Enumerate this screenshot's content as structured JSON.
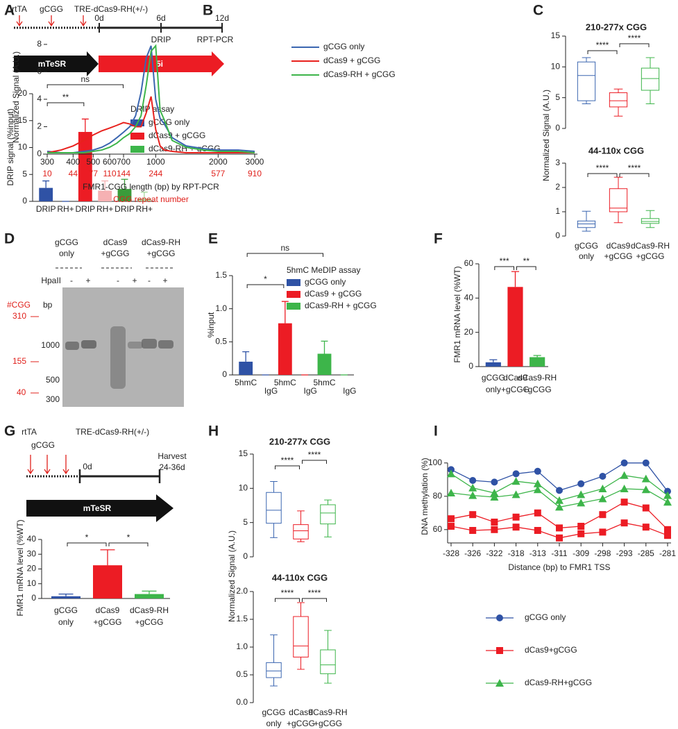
{
  "panel_labels": [
    "A",
    "B",
    "C",
    "D",
    "E",
    "F",
    "G",
    "H",
    "I"
  ],
  "schematic_a": {
    "inducers": [
      "rtTA",
      "gCGG",
      "TRE-dCas9-RH(+/-)"
    ],
    "days": [
      "0d",
      "6d",
      "12d"
    ],
    "assays": [
      "DRIP",
      "RPT-PCR"
    ],
    "media": [
      "mTeSR",
      "5i"
    ]
  },
  "gel": {
    "samples": [
      [
        "gCGG",
        "only"
      ],
      [
        "dCas9",
        "+gCGG"
      ],
      [
        "dCas9-RH",
        "+gCGG"
      ]
    ],
    "enzyme": "HpaII",
    "lanes": [
      "-",
      "+",
      "-",
      "+",
      "-",
      "+"
    ],
    "cgg_header": "#CGG",
    "bp_header": "bp",
    "cgg_marks": [
      "310",
      "155",
      "40"
    ],
    "bp_marks": [
      "1000",
      "500",
      "300"
    ]
  },
  "schematic_g": {
    "inducers": [
      "rtTA",
      "gCGG",
      "TRE-dCas9-RH(+/-)"
    ],
    "day": "0d",
    "harvest": [
      "Harvest",
      "24-36d"
    ],
    "medium": "mTeSR"
  },
  "chart_data": [
    {
      "type": "bar",
      "y_label": "DRIP signal (%input)",
      "categories": [
        "DRIP",
        "RH+",
        "DRIP",
        "RH+",
        "DRIP",
        "RH+"
      ],
      "values": [
        2.5,
        0,
        12.9,
        2.0,
        2.3,
        0.5
      ],
      "errors": [
        1.3,
        0,
        2.4,
        1.8,
        1.8,
        1.2
      ],
      "colors": [
        "#2f52a5",
        "#2f52a5",
        "#ec1c24",
        "#f6b1b3",
        "#3a9b3a",
        "#a8d8a0"
      ],
      "ylim": [
        0,
        20
      ],
      "yticks": [
        0,
        5,
        10,
        15,
        20
      ],
      "significance": [
        {
          "from": 0,
          "to": 2,
          "label": "**"
        },
        {
          "from": 0,
          "to": 4,
          "label": "ns"
        }
      ],
      "legend": {
        "title": "DRIP assay",
        "entries": [
          {
            "name": "gCGG only",
            "color": "#2f52a5"
          },
          {
            "name": "dCas9 + gCGG",
            "color": "#ec1c24"
          },
          {
            "name": "dCas9-RH + gCGG",
            "color": "#3db54a"
          }
        ]
      }
    },
    {
      "type": "line",
      "y_label": "Normalized Signal (A.U.)",
      "x_label": "FMR1-CGG length (bp) by RPT-PCR",
      "x2_label": "CGG repeat number",
      "xscale": "log",
      "x": [
        300,
        350,
        400,
        450,
        500,
        550,
        600,
        650,
        700,
        750,
        800,
        850,
        900,
        950,
        1000,
        1050,
        1100,
        1200,
        1400,
        1700,
        2000,
        2500,
        3000
      ],
      "series": [
        {
          "name": "gCGG only",
          "color": "#3b66b0",
          "values": [
            0.2,
            0.1,
            0.1,
            0.2,
            0.3,
            0.5,
            0.8,
            1.2,
            1.6,
            2.0,
            2.8,
            4.5,
            7.0,
            7.9,
            4.0,
            2.6,
            2.2,
            1.2,
            0.6,
            0.4,
            0.3,
            0.3,
            0.2
          ]
        },
        {
          "name": "dCas9 + gCGG",
          "color": "#e8211d",
          "values": [
            0.1,
            0.3,
            0.6,
            1.0,
            1.4,
            1.7,
            1.9,
            2.1,
            2.3,
            2.2,
            2.0,
            2.0,
            3.0,
            4.2,
            1.8,
            0.6,
            0.3,
            0.2,
            0.1,
            0.1,
            0.1,
            0.1,
            0.1
          ]
        },
        {
          "name": "dCas9-RH + gCGG",
          "color": "#3db54a",
          "values": [
            0.1,
            0.1,
            0.1,
            0.1,
            0.2,
            0.3,
            0.5,
            0.8,
            1.2,
            1.5,
            2.0,
            2.8,
            5.0,
            7.5,
            7.9,
            3.2,
            2.5,
            1.0,
            0.5,
            0.3,
            0.2,
            0.2,
            0.1
          ]
        }
      ],
      "xlim": [
        300,
        3000
      ],
      "xticks": [
        300,
        400,
        500,
        600,
        700,
        1000,
        2000,
        3000
      ],
      "x2ticks": [
        {
          "value": 300,
          "label": "10"
        },
        {
          "value": 400,
          "label": "44"
        },
        {
          "value": 500,
          "label": "77"
        },
        {
          "value": 600,
          "label": "110"
        },
        {
          "value": 700,
          "label": "144"
        },
        {
          "value": 1000,
          "label": "244"
        },
        {
          "value": 2000,
          "label": "577"
        },
        {
          "value": 3000,
          "label": "910"
        }
      ],
      "ylim": [
        0,
        8.3
      ],
      "yticks": [
        0,
        2,
        4,
        6,
        8
      ]
    },
    {
      "type": "box",
      "title": "210-277x CGG",
      "boxes": [
        {
          "min": 4,
          "q1": 4.5,
          "median": 8.6,
          "q3": 10.8,
          "max": 11.5
        },
        {
          "min": 2,
          "q1": 3.5,
          "median": 4.5,
          "q3": 5.8,
          "max": 6.4
        },
        {
          "min": 4,
          "q1": 6.2,
          "median": 8.1,
          "q3": 9.8,
          "max": 11.5
        }
      ],
      "colors": [
        "#3b66b0",
        "#ec1c24",
        "#3db54a"
      ],
      "ylim": [
        0,
        15
      ],
      "yticks": [
        0,
        5,
        10,
        15
      ],
      "significance": [
        {
          "from": 0,
          "to": 1,
          "label": "****"
        },
        {
          "from": 1,
          "to": 2,
          "label": "****"
        }
      ]
    },
    {
      "type": "box",
      "title": "44-110x CGG",
      "y_label": "Normalized Signal (A.U.)",
      "categories": [
        [
          "gCGG",
          "only"
        ],
        [
          "dCas9",
          "+gCGG"
        ],
        [
          "dCas9-RH",
          "+gCGG"
        ]
      ],
      "boxes": [
        {
          "min": 0.2,
          "q1": 0.35,
          "median": 0.5,
          "q3": 0.62,
          "max": 1.02
        },
        {
          "min": 0.55,
          "q1": 1.0,
          "median": 1.15,
          "q3": 1.95,
          "max": 2.42
        },
        {
          "min": 0.35,
          "q1": 0.52,
          "median": 0.6,
          "q3": 0.72,
          "max": 1.05
        }
      ],
      "colors": [
        "#3b66b0",
        "#ec1c24",
        "#3db54a"
      ],
      "ylim": [
        0,
        3
      ],
      "yticks": [
        0,
        1,
        2,
        3
      ],
      "significance": [
        {
          "from": 0,
          "to": 1,
          "label": "****"
        },
        {
          "from": 1,
          "to": 2,
          "label": "****"
        }
      ]
    },
    {
      "type": "bar",
      "y_label": "%input",
      "categories": [
        "5hmC",
        "IgG",
        "5hmC",
        "IgG",
        "5hmC",
        "IgG"
      ],
      "values": [
        0.2,
        0,
        0.78,
        0,
        0.32,
        0
      ],
      "errors": [
        0.15,
        0,
        0.33,
        0,
        0.19,
        0
      ],
      "colors": [
        "#2f52a5",
        "#2f52a5",
        "#ec1c24",
        "#ec1c24",
        "#3db54a",
        "#3db54a"
      ],
      "ylim": [
        0,
        1.5
      ],
      "yticks": [
        0,
        0.5,
        {
          "value": 1,
          "label": "1.0"
        },
        1.5
      ],
      "significance": [
        {
          "from": 0,
          "to": 2,
          "label": "*"
        },
        {
          "from": 0,
          "to": 4,
          "label": "ns"
        }
      ],
      "legend": {
        "title": "5hmC MeDIP assay",
        "entries": [
          {
            "name": "gCGG only",
            "color": "#2f52a5"
          },
          {
            "name": "dCas9 + gCGG",
            "color": "#ec1c24"
          },
          {
            "name": "dCas9-RH + gCGG",
            "color": "#3db54a"
          }
        ]
      }
    },
    {
      "type": "bar",
      "y_label": "FMR1 mRNA level (%WT)",
      "categories": [
        [
          "gCGG",
          "only"
        ],
        [
          "dCas9",
          "+gCGG"
        ],
        [
          "dCas9-RH",
          "+gCGG"
        ]
      ],
      "values": [
        2.5,
        46.5,
        5.5
      ],
      "errors": [
        1.5,
        9,
        1
      ],
      "colors": [
        "#2f52a5",
        "#ec1c24",
        "#3db54a"
      ],
      "ylim": [
        0,
        60
      ],
      "yticks": [
        0,
        20,
        40,
        60
      ],
      "significance": [
        {
          "from": 0,
          "to": 1,
          "label": "***"
        },
        {
          "from": 1,
          "to": 2,
          "label": "**"
        }
      ]
    },
    {
      "type": "bar",
      "y_label": "FMR1 mRNA level (%WT)",
      "categories": [
        [
          "gCGG",
          "only"
        ],
        [
          "dCas9",
          "+gCGG"
        ],
        [
          "dCas9-RH",
          "+gCGG"
        ]
      ],
      "values": [
        1.5,
        22.5,
        3
      ],
      "errors": [
        1.5,
        10.5,
        2
      ],
      "colors": [
        "#2f52a5",
        "#ec1c24",
        "#3db54a"
      ],
      "ylim": [
        0,
        40
      ],
      "yticks": [
        0,
        10,
        20,
        30,
        40
      ],
      "significance": [
        {
          "from": 0,
          "to": 1,
          "label": "*"
        },
        {
          "from": 1,
          "to": 2,
          "label": "*"
        }
      ]
    },
    {
      "type": "box",
      "title": "210-277x CGG",
      "boxes": [
        {
          "min": 2.8,
          "q1": 4.9,
          "median": 6.8,
          "q3": 9.4,
          "max": 11
        },
        {
          "min": 2.2,
          "q1": 2.6,
          "median": 3.8,
          "q3": 4.7,
          "max": 6.7
        },
        {
          "min": 2.9,
          "q1": 4.8,
          "median": 6.4,
          "q3": 7.6,
          "max": 8.3
        }
      ],
      "colors": [
        "#3b66b0",
        "#ec1c24",
        "#3db54a"
      ],
      "ylim": [
        0,
        15
      ],
      "yticks": [
        0,
        5,
        10,
        15
      ],
      "significance": [
        {
          "from": 0,
          "to": 1,
          "label": "****"
        },
        {
          "from": 1,
          "to": 2,
          "label": "****"
        }
      ]
    },
    {
      "type": "box",
      "title": "44-110x CGG",
      "y_label": "Normalized Signal (A.U.)",
      "categories": [
        [
          "gCGG",
          "only"
        ],
        [
          "dCas9",
          "+gCGG"
        ],
        [
          "dCas9-RH",
          "+gCGG"
        ]
      ],
      "boxes": [
        {
          "min": 0.3,
          "q1": 0.45,
          "median": 0.57,
          "q3": 0.72,
          "max": 1.22
        },
        {
          "min": 0.6,
          "q1": 0.82,
          "median": 1.02,
          "q3": 1.55,
          "max": 1.8
        },
        {
          "min": 0.35,
          "q1": 0.52,
          "median": 0.68,
          "q3": 0.95,
          "max": 1.3
        }
      ],
      "colors": [
        "#3b66b0",
        "#ec1c24",
        "#3db54a"
      ],
      "ylim": [
        0,
        2
      ],
      "yticks": [
        {
          "value": 0,
          "label": "0.0"
        },
        0.5,
        {
          "value": 1,
          "label": "1.0"
        },
        1.5,
        {
          "value": 2,
          "label": "2.0"
        }
      ],
      "significance": [
        {
          "from": 0,
          "to": 1,
          "label": "****"
        },
        {
          "from": 1,
          "to": 2,
          "label": "****"
        }
      ]
    },
    {
      "type": "line",
      "y_label": "DNA methylation (%)",
      "x_label": "Distance (bp) to FMR1 TSS",
      "categories": [
        "-328",
        "-326",
        "-322",
        "-318",
        "-313",
        "-311",
        "-309",
        "-298",
        "-293",
        "-285",
        "-281"
      ],
      "series": [
        {
          "name": "gCGG only",
          "color": "#2f52a5",
          "marker": "circle",
          "values": [
            [
              96,
              89.5,
              88.5,
              93.5,
              95,
              83.5,
              87.5,
              92,
              100,
              100,
              83
            ]
          ]
        },
        {
          "name": "dCas9+gCGG",
          "color": "#ec1c24",
          "marker": "square",
          "values": [
            [
              66.5,
              69,
              64.5,
              67.5,
              70,
              61,
              62,
              69,
              76.5,
              73,
              60
            ],
            [
              62,
              59.5,
              60,
              61.5,
              59.5,
              55,
              57.5,
              58.5,
              64,
              61.5,
              56.5
            ]
          ]
        },
        {
          "name": "dCas9-RH+gCGG",
          "color": "#3db54a",
          "marker": "triangle",
          "values": [
            [
              93.5,
              85,
              82,
              89,
              87.5,
              77.5,
              81,
              84.5,
              92.5,
              90.5,
              80.5
            ],
            [
              82,
              80.5,
              79.5,
              81,
              84,
              73.5,
              76,
              78.5,
              84.5,
              84,
              76.5
            ]
          ]
        }
      ],
      "ylim": [
        52,
        107
      ],
      "yticks": [
        60,
        80,
        100
      ]
    }
  ]
}
